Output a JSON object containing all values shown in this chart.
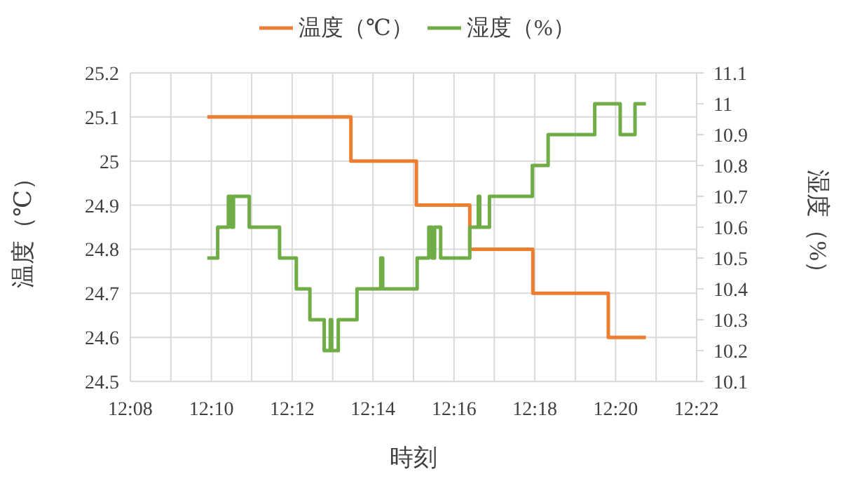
{
  "chart_data": {
    "type": "step",
    "xlabel": "時刻",
    "ylabel": "温度（℃）",
    "y2label": "湿度（%）",
    "legend": "top",
    "grid": true,
    "xlim": [
      12.1333,
      12.3667
    ],
    "xticks": [
      {
        "value": 12.1333,
        "label": "12:08"
      },
      {
        "value": 12.15,
        "label": null
      },
      {
        "value": 12.1667,
        "label": "12:10"
      },
      {
        "value": 12.1833,
        "label": null
      },
      {
        "value": 12.2,
        "label": "12:12"
      },
      {
        "value": 12.2167,
        "label": null
      },
      {
        "value": 12.2333,
        "label": "12:14"
      },
      {
        "value": 12.25,
        "label": null
      },
      {
        "value": 12.2667,
        "label": "12:16"
      },
      {
        "value": 12.2833,
        "label": null
      },
      {
        "value": 12.3,
        "label": "12:18"
      },
      {
        "value": 12.3167,
        "label": null
      },
      {
        "value": 12.3333,
        "label": "12:20"
      },
      {
        "value": 12.35,
        "label": null
      },
      {
        "value": 12.3667,
        "label": "12:22"
      }
    ],
    "ylim": [
      24.5,
      25.2
    ],
    "yticks": [
      24.5,
      24.6,
      24.7,
      24.8,
      24.9,
      25,
      25.1,
      25.2
    ],
    "y2lim": [
      10.1,
      11.1
    ],
    "y2ticks": [
      10.1,
      10.2,
      10.3,
      10.4,
      10.5,
      10.6,
      10.7,
      10.8,
      10.9,
      11,
      11.1
    ],
    "series": [
      {
        "name": "温度（℃）",
        "color": "#ed7d31",
        "x": [
          12.165,
          12.2242,
          12.2512,
          12.2732,
          12.2992,
          12.3303,
          12.3458
        ],
        "values": [
          25.1,
          25.0,
          24.9,
          24.8,
          24.7,
          24.6,
          24.6
        ]
      },
      {
        "name": "湿度（%）",
        "color": "#70ad47",
        "axis": "y2",
        "x": [
          12.165,
          12.1693,
          12.1737,
          12.175,
          12.1758,
          12.1823,
          12.1948,
          12.2017,
          12.2073,
          12.2132,
          12.2157,
          12.2163,
          12.219,
          12.2267,
          12.2365,
          12.2373,
          12.2515,
          12.2563,
          12.2577,
          12.2587,
          12.2612,
          12.2732,
          12.2767,
          12.2773,
          12.2813,
          12.299,
          12.3055,
          12.3247,
          12.3352,
          12.3413,
          12.3458
        ],
        "values": [
          10.5,
          10.6,
          10.7,
          10.6,
          10.7,
          10.6,
          10.5,
          10.4,
          10.3,
          10.2,
          10.3,
          10.2,
          10.3,
          10.4,
          10.5,
          10.4,
          10.5,
          10.6,
          10.5,
          10.6,
          10.5,
          10.6,
          10.7,
          10.6,
          10.7,
          10.8,
          10.9,
          11.0,
          10.9,
          11.0,
          11.0
        ]
      }
    ]
  }
}
